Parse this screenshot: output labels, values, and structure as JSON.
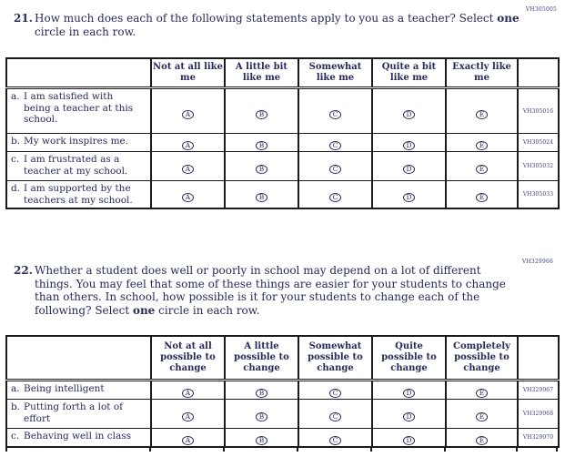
{
  "colors": {
    "background": "#ffffff",
    "text": "#262a5c",
    "border": "#1a1a1a",
    "code_text": "#3c4484"
  },
  "questions": [
    {
      "number": "21.",
      "margin_code": "VH305005",
      "prompt_before": "How much does each of the following statements apply to you as a teacher? Select ",
      "prompt_bold": "one",
      "prompt_after": " circle in each row.",
      "table": {
        "columns": [
          "Not at all like me",
          "A little bit like me",
          "Somewhat like me",
          "Quite a bit like me",
          "Exactly like me"
        ],
        "options": [
          "A",
          "B",
          "C",
          "D",
          "E"
        ],
        "rows": [
          {
            "letter": "a.",
            "text": "I am satisfied with being a teacher at this school.",
            "code": "VH305016"
          },
          {
            "letter": "b.",
            "text": "My work inspires me.",
            "code": "VH305024"
          },
          {
            "letter": "c.",
            "text": "I am frustrated as a teacher at my school.",
            "code": "VH305032"
          },
          {
            "letter": "d.",
            "text": "I am supported by the teachers at my school.",
            "code": "VH305033"
          }
        ]
      }
    },
    {
      "number": "22.",
      "margin_code": "VH329966",
      "prompt_before": "Whether a student does well or poorly in school may depend on a lot of different things. You may feel that some of these things are easier for your students to change than others. In school, how possible is it for your students to change each of the following? Select ",
      "prompt_bold": "one",
      "prompt_after": " circle in each row.",
      "table": {
        "columns": [
          "Not at all possible to change",
          "A little possible to change",
          "Somewhat possible to change",
          "Quite possible to change",
          "Completely possible to change"
        ],
        "options": [
          "A",
          "B",
          "C",
          "D",
          "E"
        ],
        "rows": [
          {
            "letter": "a.",
            "text": "Being intelligent",
            "code": "VH329967"
          },
          {
            "letter": "b.",
            "text": "Putting forth a lot of effort",
            "code": "VH329968"
          },
          {
            "letter": "c.",
            "text": "Behaving well in class",
            "code": "VH329970"
          }
        ]
      }
    }
  ]
}
